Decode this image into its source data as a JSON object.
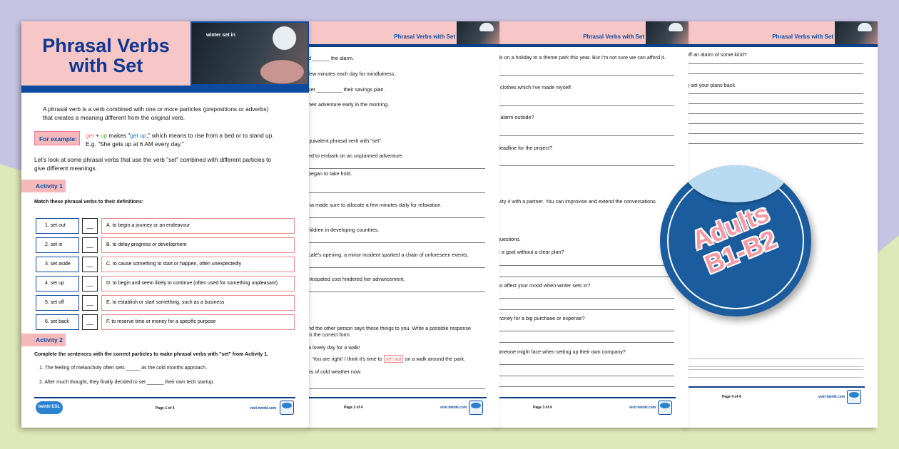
{
  "colors": {
    "navy": "#0d3f85",
    "pink": "#f7c6c6",
    "badge": "#1b5c9e",
    "background_top": "#c6c4e2",
    "background_bottom": "#dfe8b8"
  },
  "page1": {
    "title_line1": "Phrasal Verbs",
    "title_line2": "with Set",
    "image_caption": "winter set in",
    "intro_1": "A phrasal verb is a verb combined with one or more particles (prepositions or adverbs)",
    "intro_2": "that creates a meaning different from the original verb.",
    "for_example": "For example:",
    "example_get": "get",
    "example_plus": " + ",
    "example_up": "up",
    "example_makes": " makes \"",
    "example_getup": "get up",
    "example_rest": ",\" which means to rise from a bed or to stand up.",
    "example_2": "E.g. \"She gets up at 6 AM every day.\"",
    "lead_1": "Let's look at some phrasal verbs that use the verb \"set\" combined with different particles to",
    "lead_2": "give different meanings.",
    "activity1": "Activity 1",
    "activity1_instr": "Match these phrasal verbs to their definitions:",
    "verbs": [
      "1.   set out",
      "2.   set in",
      "3.   set aside",
      "4.   set up",
      "5.   set off",
      "6.   set back"
    ],
    "blank": "__",
    "definitions": [
      "A.  to begin a journey or an endeavour",
      "B.  to delay progress or development",
      "C.  to cause something to start or happen, often unexpectedly",
      "D.  to begin and seem likely to continue (often used for something unpleasant)",
      "E.  to establish or start something, such as a business",
      "F.  to reserve time or money for a specific purpose"
    ],
    "activity2": "Activity 2",
    "activity2_instr": "Complete the sentences with the correct particles to make phrasal verbs with \"set\" from Activity 1.",
    "sentences": [
      "1.   The feeling of melancholy often sets _____ as the cold months approach.",
      "2.   After much thought, they finally decided to set ______ their own tech startup."
    ],
    "logo": "twinkl ESL",
    "footer_page": "Page 1 of 4",
    "footer_url": "visit twinkl.com"
  },
  "page2": {
    "header": "Phrasal Verbs with Set",
    "lines": [
      "d ______ the alarm.",
      "few minutes each day for mindfulness.",
      "set _________ their savings plan.",
      "heir adventure early in the morning.",
      "quivalent phrasal verb with \"set\".",
      "ed to embark on an unplanned adventure.",
      "began to take hold.",
      "na made sure to allocate a few minutes daily for relaxation.",
      "hildren in developing countries.",
      "café's opening, a minor incident sparked a chain of unforeseen events.",
      "nticipated cost hindered her advancement.",
      "nd the other person says these things to you. Write a possible response",
      "in the correct form.",
      "a lovely day for a walk!"
    ],
    "response_before": "You are right! I think it's time to ",
    "response_answer": "set out",
    "response_after": " on a walk around the park.",
    "last_line": "ks of cold weather now.",
    "footer_page": "Page 2 of 4",
    "footer_url": "visit twinkl.com"
  },
  "page3": {
    "header": "Phrasal Verbs with Set",
    "lines": [
      "ds on a holiday to a theme park this year. But I'm not sure we can afford it.",
      "f clothes which I've made myself.",
      "r alarm outside?",
      "deadline for the project?",
      "ivity 4 with a partner. You can improvise and extend the conversations.",
      "questions.",
      "e a goal without a clear plan?",
      "ns affect your mood when winter sets in?",
      "money for a big purchase or expense?",
      "omeone might face when setting up their own company?"
    ],
    "footer_page": "Page 3 of 4",
    "footer_url": "visit twinkl.com"
  },
  "page4": {
    "header": "Phrasal Verbs with Set",
    "lines": [
      "off an alarm of some kind?",
      "g set your plans back."
    ],
    "footer_page": "Page 4 of 4",
    "footer_url": "visit twinkl.com"
  },
  "badge": {
    "line1": "Adults",
    "line2": "B1-B2"
  }
}
